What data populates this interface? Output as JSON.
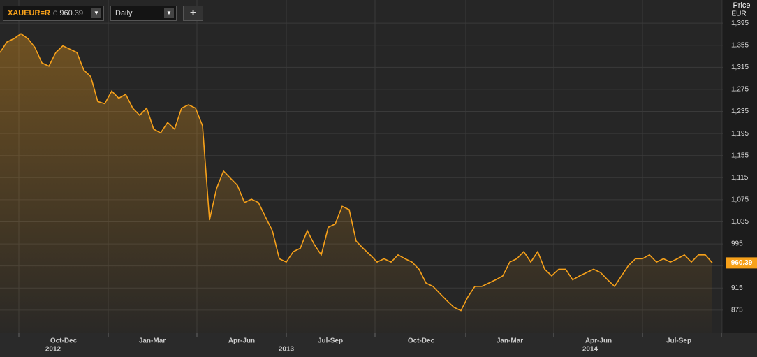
{
  "chart_data": {
    "type": "line",
    "instrument": "XAUEUR=R",
    "close_marker": "C",
    "last_price": 960.39,
    "interval": "Daily",
    "add_button": "+",
    "y_axis_title": "Price",
    "y_axis_unit": "EUR",
    "series": [
      {
        "name": "XAUEUR=R",
        "color": "#f7a11a",
        "values": [
          1342,
          1361,
          1367,
          1376,
          1367,
          1351,
          1323,
          1317,
          1342,
          1354,
          1348,
          1342,
          1310,
          1298,
          1253,
          1249,
          1272,
          1259,
          1266,
          1241,
          1228,
          1241,
          1203,
          1196,
          1215,
          1203,
          1241,
          1247,
          1241,
          1209,
          1038,
          1095,
          1127,
          1114,
          1101,
          1070,
          1076,
          1070,
          1044,
          1019,
          968,
          962,
          981,
          987,
          1019,
          994,
          975,
          1025,
          1031,
          1063,
          1057,
          1000,
          987,
          975,
          962,
          968,
          962,
          975,
          968,
          962,
          949,
          924,
          918,
          905,
          892,
          880,
          874,
          899,
          918,
          918,
          924,
          930,
          937,
          962,
          968,
          981,
          962,
          981,
          949,
          937,
          949,
          949,
          930,
          937,
          943,
          949,
          943,
          930,
          918,
          937,
          956,
          968,
          968,
          975,
          962,
          968,
          962,
          968,
          975,
          962,
          975,
          975,
          960.39
        ]
      }
    ],
    "xlim": [
      0,
      103.5
    ],
    "ylim": [
      833,
      1437
    ],
    "yticks": [
      {
        "value": 875,
        "label": "875"
      },
      {
        "value": 915,
        "label": "915"
      },
      {
        "value": 955,
        "label": "955"
      },
      {
        "value": 995,
        "label": "995"
      },
      {
        "value": 1035,
        "label": "1,035"
      },
      {
        "value": 1075,
        "label": "1,075"
      },
      {
        "value": 1115,
        "label": "1,115"
      },
      {
        "value": 1155,
        "label": "1,155"
      },
      {
        "value": 1195,
        "label": "1,195"
      },
      {
        "value": 1235,
        "label": "1,235"
      },
      {
        "value": 1275,
        "label": "1,275"
      },
      {
        "value": 1315,
        "label": "1,315"
      },
      {
        "value": 1355,
        "label": "1,355"
      },
      {
        "value": 1395,
        "label": "1,395"
      }
    ],
    "xgrid": [
      2.7,
      15.5,
      28.2,
      41,
      53.7,
      66.7,
      79.3,
      92,
      103.3
    ],
    "xticks": [
      {
        "value": 9.1,
        "label": "Oct-Dec"
      },
      {
        "value": 21.8,
        "label": "Jan-Mar"
      },
      {
        "value": 34.6,
        "label": "Apr-Jun"
      },
      {
        "value": 47.3,
        "label": "Jul-Sep"
      },
      {
        "value": 60.3,
        "label": "Oct-Dec"
      },
      {
        "value": 73,
        "label": "Jan-Mar"
      },
      {
        "value": 85.7,
        "label": "Apr-Jun"
      },
      {
        "value": 97.2,
        "label": "Jul-Sep"
      }
    ],
    "year_labels": [
      {
        "value": 7.6,
        "label": "2012"
      },
      {
        "value": 41,
        "label": "2013"
      },
      {
        "value": 84.5,
        "label": "2014"
      }
    ],
    "grid": true
  }
}
